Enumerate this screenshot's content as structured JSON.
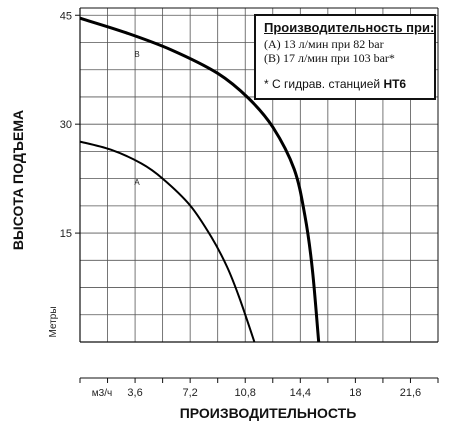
{
  "chart_data": {
    "type": "line",
    "xlabel": "ПРОИЗВОДИТЕЛЬНОСТЬ",
    "ylabel": "ВЫСОТА ПОДЪЕМА",
    "x_unit": "м3/ч",
    "y_unit": "Метры",
    "xlim": [
      0,
      23.4
    ],
    "ylim": [
      0,
      46
    ],
    "x_ticks": [
      "3,6",
      "7,2",
      "10,8",
      "14,4",
      "18",
      "21,6"
    ],
    "x_tick_values": [
      3.6,
      7.2,
      10.8,
      14.4,
      18,
      21.6
    ],
    "y_ticks": [
      "15",
      "30",
      "45"
    ],
    "y_tick_values": [
      15,
      30,
      45
    ],
    "grid": true,
    "series": [
      {
        "name": "A",
        "x": [
          0,
          2,
          4,
          5.4,
          7.2,
          8.6,
          9.6,
          10.4,
          11.4
        ],
        "y": [
          27.6,
          26.5,
          24.6,
          22.5,
          18.8,
          14.4,
          10.4,
          6.2,
          0
        ]
      },
      {
        "name": "B",
        "x": [
          0,
          3,
          6,
          9,
          11,
          12.6,
          14,
          14.7,
          15.2,
          15.6
        ],
        "y": [
          44.6,
          42.6,
          40.2,
          37,
          33.6,
          29.6,
          23.8,
          17.4,
          9.8,
          0
        ]
      }
    ]
  },
  "legend": {
    "title": "Производительность при:",
    "line_a": "(A) 13 л/мин при 82 bar",
    "line_b": "(B) 17 л/мин при 103 bar*",
    "note_prefix": "* С гидрав. станцией ",
    "note_bold": "HT6"
  },
  "labels": {
    "a": "A",
    "b": "B"
  }
}
